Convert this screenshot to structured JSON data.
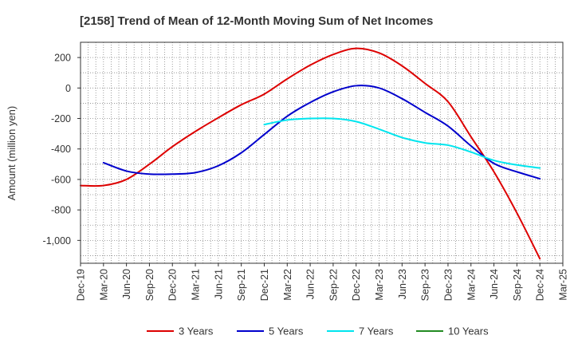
{
  "chart_data": {
    "type": "line",
    "title": "[2158]  Trend of Mean of 12-Month Moving Sum of Net Incomes",
    "xlabel": "",
    "ylabel": "Amount (million yen)",
    "x_ticks": [
      "Dec-19",
      "Mar-20",
      "Jun-20",
      "Sep-20",
      "Dec-20",
      "Mar-21",
      "Jun-21",
      "Sep-21",
      "Dec-21",
      "Mar-22",
      "Jun-22",
      "Sep-22",
      "Dec-22",
      "Mar-23",
      "Jun-23",
      "Sep-23",
      "Dec-23",
      "Mar-24",
      "Jun-24",
      "Sep-24",
      "Dec-24",
      "Mar-25"
    ],
    "y_ticks": [
      200,
      0,
      -200,
      -400,
      -600,
      -800,
      -1000
    ],
    "y_tick_labels": [
      "200",
      "0",
      "-200",
      "-400",
      "-600",
      "-800",
      "-1,000"
    ],
    "ylim": [
      -1150,
      300
    ],
    "grid": true,
    "legend_position": "bottom",
    "series": [
      {
        "name": "3 Years",
        "color": "#dd0000",
        "points": [
          [
            "Dec-19",
            -640
          ],
          [
            "Mar-20",
            -640
          ],
          [
            "Jun-20",
            -600
          ],
          [
            "Sep-20",
            -500
          ],
          [
            "Dec-20",
            -385
          ],
          [
            "Mar-21",
            -285
          ],
          [
            "Jun-21",
            -195
          ],
          [
            "Sep-21",
            -110
          ],
          [
            "Dec-21",
            -40
          ],
          [
            "Mar-22",
            60
          ],
          [
            "Jun-22",
            150
          ],
          [
            "Sep-22",
            220
          ],
          [
            "Dec-22",
            260
          ],
          [
            "Mar-23",
            230
          ],
          [
            "Jun-23",
            145
          ],
          [
            "Sep-23",
            30
          ],
          [
            "Dec-23",
            -90
          ],
          [
            "Mar-24",
            -320
          ],
          [
            "Jun-24",
            -550
          ],
          [
            "Sep-24",
            -820
          ],
          [
            "Dec-24",
            -1120
          ]
        ]
      },
      {
        "name": "5 Years",
        "color": "#0000cc",
        "points": [
          [
            "Mar-20",
            -490
          ],
          [
            "Jun-20",
            -545
          ],
          [
            "Sep-20",
            -565
          ],
          [
            "Dec-20",
            -565
          ],
          [
            "Mar-21",
            -555
          ],
          [
            "Jun-21",
            -510
          ],
          [
            "Sep-21",
            -425
          ],
          [
            "Dec-21",
            -305
          ],
          [
            "Mar-22",
            -185
          ],
          [
            "Jun-22",
            -95
          ],
          [
            "Sep-22",
            -25
          ],
          [
            "Dec-22",
            15
          ],
          [
            "Mar-23",
            0
          ],
          [
            "Jun-23",
            -70
          ],
          [
            "Sep-23",
            -160
          ],
          [
            "Dec-23",
            -250
          ],
          [
            "Mar-24",
            -380
          ],
          [
            "Jun-24",
            -495
          ],
          [
            "Sep-24",
            -550
          ],
          [
            "Dec-24",
            -595
          ]
        ]
      },
      {
        "name": "7 Years",
        "color": "#00e5ee",
        "points": [
          [
            "Dec-21",
            -240
          ],
          [
            "Mar-22",
            -210
          ],
          [
            "Jun-22",
            -200
          ],
          [
            "Sep-22",
            -200
          ],
          [
            "Dec-22",
            -220
          ],
          [
            "Mar-23",
            -270
          ],
          [
            "Jun-23",
            -325
          ],
          [
            "Sep-23",
            -360
          ],
          [
            "Dec-23",
            -375
          ],
          [
            "Mar-24",
            -420
          ],
          [
            "Jun-24",
            -475
          ],
          [
            "Sep-24",
            -505
          ],
          [
            "Dec-24",
            -525
          ]
        ]
      },
      {
        "name": "10 Years",
        "color": "#228b22",
        "points": []
      }
    ]
  }
}
